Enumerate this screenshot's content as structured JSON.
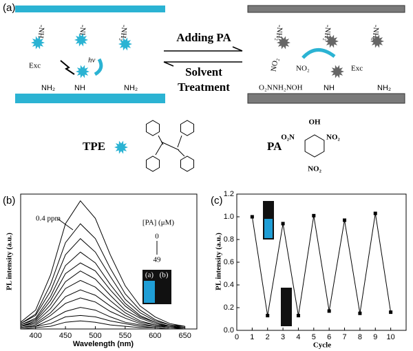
{
  "panel_a": {
    "label": "(a)",
    "left": {
      "top_groups": [
        "-NH₂",
        "-NH₂",
        "-NH₂"
      ],
      "exc": "Exc",
      "hv": "hν",
      "bottom_groups": [
        "NH₂",
        "NH",
        "NH₂"
      ]
    },
    "arrows": {
      "forward": "Adding PA",
      "reverse": [
        "Solvent",
        "Treatment"
      ]
    },
    "right": {
      "top_groups": [
        "-NH₂",
        "-NH₂",
        "-NH₂"
      ],
      "exc": "Exc",
      "pa_groups": [
        "NO₂",
        "NO₂",
        "O₂N",
        "NH₂NOH"
      ],
      "bottom_groups": [
        "NH",
        "NH₂"
      ]
    },
    "tpe_label": "TPE",
    "pa_label": "PA",
    "pa_structure": [
      "OH",
      "O₂N",
      "NO₂",
      "NO₂"
    ]
  },
  "chart_data": [
    {
      "type": "line",
      "panel_label": "(b)",
      "x_label": "Wavelength (nm)",
      "y_label": "PL intensity (a.u.)",
      "x": [
        375,
        400,
        425,
        450,
        475,
        500,
        525,
        550,
        575,
        600,
        625,
        650
      ],
      "xlim": [
        375,
        670
      ],
      "xticks": [
        400,
        450,
        500,
        550,
        600,
        650
      ],
      "ylim": [
        0,
        100
      ],
      "annotations": [
        "0.4 ppm",
        "[PA] (μM)",
        "0",
        "49",
        "(a)",
        "(b)"
      ],
      "series": [
        {
          "color": "#000000",
          "values": [
            5,
            14,
            40,
            78,
            95,
            82,
            55,
            32,
            17,
            9,
            4,
            2
          ]
        },
        {
          "color": "#000000",
          "values": [
            4,
            11,
            33,
            64,
            78,
            67,
            45,
            26,
            14,
            7,
            3,
            2
          ]
        },
        {
          "color": "#000000",
          "values": [
            4,
            10,
            28,
            55,
            67,
            57,
            39,
            22,
            12,
            6,
            3,
            1
          ]
        },
        {
          "color": "#000000",
          "values": [
            3,
            8,
            24,
            47,
            57,
            49,
            33,
            19,
            10,
            5,
            2,
            1
          ]
        },
        {
          "color": "#000000",
          "values": [
            3,
            7,
            21,
            41,
            49,
            43,
            29,
            17,
            9,
            5,
            2,
            1
          ]
        },
        {
          "color": "#000000",
          "values": [
            2,
            6,
            18,
            35,
            43,
            37,
            25,
            14,
            8,
            4,
            2,
            1
          ]
        },
        {
          "color": "#000000",
          "values": [
            2,
            5,
            15,
            30,
            36,
            31,
            21,
            12,
            6,
            3,
            2,
            1
          ]
        },
        {
          "color": "#000000",
          "values": [
            2,
            4,
            12,
            24,
            29,
            25,
            17,
            10,
            5,
            3,
            1,
            1
          ]
        },
        {
          "color": "#000000",
          "values": [
            1,
            3,
            10,
            19,
            23,
            20,
            13,
            8,
            4,
            2,
            1,
            0
          ]
        },
        {
          "color": "#000000",
          "values": [
            1,
            2,
            7,
            13,
            16,
            14,
            9,
            5,
            3,
            2,
            1,
            0
          ]
        },
        {
          "color": "#000000",
          "values": [
            1,
            2,
            4,
            9,
            10,
            9,
            6,
            4,
            2,
            1,
            0,
            0
          ]
        },
        {
          "color": "#000000",
          "values": [
            0,
            1,
            2,
            5,
            6,
            5,
            3,
            2,
            1,
            1,
            0,
            0
          ]
        }
      ]
    },
    {
      "type": "line",
      "panel_label": "(c)",
      "x_label": "Cycle",
      "y_label": "PL intensity (a.u.)",
      "markers": true,
      "x": [
        1,
        2,
        3,
        4,
        5,
        6,
        7,
        8,
        9,
        10
      ],
      "xlim": [
        0,
        11
      ],
      "xticks": [
        0,
        1,
        2,
        3,
        4,
        5,
        6,
        7,
        8,
        9,
        10
      ],
      "ylim": [
        0,
        1.2
      ],
      "yticks": [
        {
          "value": 0,
          "label": "0.0"
        },
        0.2,
        0.4,
        0.6,
        0.8,
        {
          "value": 1,
          "label": "1.0"
        },
        1.2
      ],
      "series": [
        {
          "color": "#000000",
          "values": [
            1.0,
            0.13,
            0.94,
            0.13,
            1.01,
            0.17,
            0.97,
            0.15,
            1.03,
            0.16
          ]
        }
      ]
    }
  ]
}
